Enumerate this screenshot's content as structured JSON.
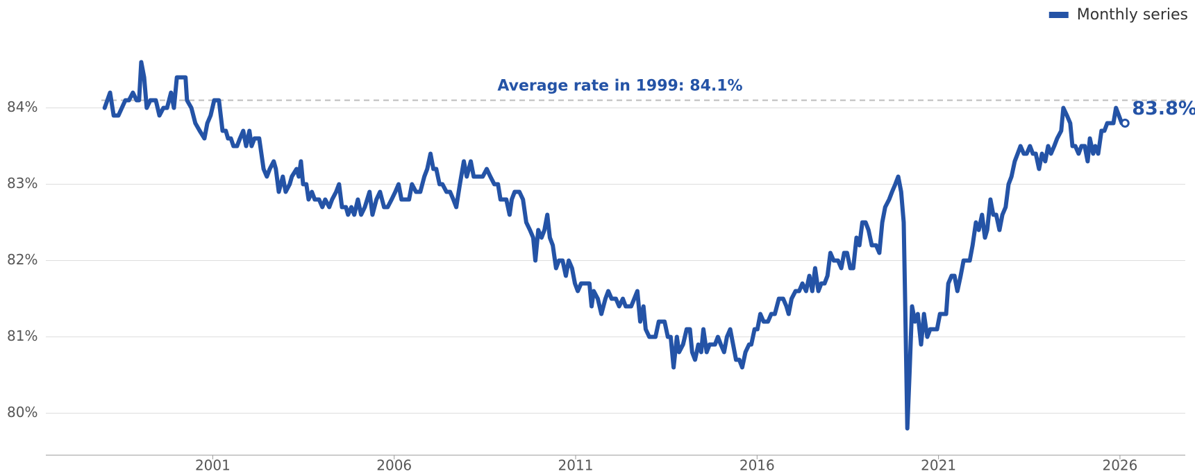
{
  "chart_data": {
    "type": "line",
    "legend": "top-right",
    "grid": true,
    "xlim": [
      1996.4,
      2027.8
    ],
    "xticks": [
      2001,
      2006,
      2011,
      2016,
      2021,
      2026
    ],
    "ylim": [
      79.45,
      85.05
    ],
    "yticks": [
      {
        "value": 80,
        "label": "80%"
      },
      {
        "value": 81,
        "label": "81%"
      },
      {
        "value": 82,
        "label": "82%"
      },
      {
        "value": 83,
        "label": "83%"
      },
      {
        "value": 84,
        "label": "84%"
      }
    ],
    "reference_line": {
      "value": 84.1,
      "label": "Average rate in 1999: 84.1%",
      "color": "#bbbbbb"
    },
    "end_label": "83.8%",
    "x": [
      1998.02,
      1998.17,
      1998.27,
      1998.4,
      1998.59,
      1998.69,
      1998.8,
      1998.9,
      1998.97,
      1999.03,
      1999.11,
      1999.18,
      1999.28,
      1999.43,
      1999.53,
      1999.64,
      1999.74,
      1999.85,
      1999.93,
      2000.01,
      2000.16,
      2000.25,
      2000.29,
      2000.41,
      2000.52,
      2000.64,
      2000.77,
      2000.85,
      2000.94,
      2001.04,
      2001.17,
      2001.27,
      2001.36,
      2001.42,
      2001.5,
      2001.57,
      2001.67,
      2001.75,
      2001.84,
      2001.92,
      2002.01,
      2002.07,
      2002.15,
      2002.28,
      2002.4,
      2002.49,
      2002.57,
      2002.68,
      2002.74,
      2002.82,
      2002.93,
      2003.01,
      2003.12,
      2003.18,
      2003.31,
      2003.37,
      2003.43,
      2003.49,
      2003.58,
      2003.64,
      2003.73,
      2003.81,
      2003.93,
      2004.02,
      2004.1,
      2004.21,
      2004.29,
      2004.4,
      2004.48,
      2004.56,
      2004.67,
      2004.73,
      2004.82,
      2004.9,
      2005.0,
      2005.09,
      2005.19,
      2005.32,
      2005.4,
      2005.51,
      2005.61,
      2005.72,
      2005.82,
      2005.93,
      2006.03,
      2006.12,
      2006.2,
      2006.3,
      2006.41,
      2006.49,
      2006.6,
      2006.72,
      2006.83,
      2006.91,
      2007.0,
      2007.08,
      2007.16,
      2007.25,
      2007.33,
      2007.44,
      2007.54,
      2007.63,
      2007.71,
      2007.81,
      2007.92,
      2008.0,
      2008.11,
      2008.19,
      2008.34,
      2008.44,
      2008.55,
      2008.65,
      2008.76,
      2008.86,
      2008.93,
      2009.09,
      2009.18,
      2009.24,
      2009.32,
      2009.45,
      2009.55,
      2009.64,
      2009.74,
      2009.83,
      2009.89,
      2009.97,
      2010.06,
      2010.14,
      2010.22,
      2010.29,
      2010.37,
      2010.46,
      2010.54,
      2010.64,
      2010.73,
      2010.81,
      2010.9,
      2010.98,
      2011.06,
      2011.15,
      2011.38,
      2011.44,
      2011.5,
      2011.61,
      2011.71,
      2011.82,
      2011.9,
      2011.99,
      2012.11,
      2012.2,
      2012.3,
      2012.38,
      2012.53,
      2012.7,
      2012.78,
      2012.87,
      2012.93,
      2013.03,
      2013.2,
      2013.29,
      2013.45,
      2013.54,
      2013.62,
      2013.7,
      2013.79,
      2013.85,
      2013.96,
      2014.06,
      2014.15,
      2014.21,
      2014.29,
      2014.38,
      2014.46,
      2014.52,
      2014.61,
      2014.69,
      2014.84,
      2014.92,
      2015.0,
      2015.09,
      2015.17,
      2015.26,
      2015.34,
      2015.42,
      2015.51,
      2015.59,
      2015.68,
      2015.78,
      2015.84,
      2015.93,
      2016.01,
      2016.09,
      2016.18,
      2016.3,
      2016.39,
      2016.49,
      2016.6,
      2016.72,
      2016.81,
      2016.87,
      2016.95,
      2017.06,
      2017.16,
      2017.25,
      2017.35,
      2017.44,
      2017.52,
      2017.6,
      2017.69,
      2017.77,
      2017.86,
      2017.94,
      2018.02,
      2018.11,
      2018.23,
      2018.32,
      2018.4,
      2018.48,
      2018.57,
      2018.65,
      2018.74,
      2018.82,
      2018.9,
      2018.99,
      2019.07,
      2019.16,
      2019.28,
      2019.37,
      2019.45,
      2019.53,
      2019.64,
      2019.72,
      2019.81,
      2019.89,
      2019.97,
      2020.04,
      2020.08,
      2020.14,
      2020.2,
      2020.27,
      2020.35,
      2020.43,
      2020.52,
      2020.6,
      2020.69,
      2020.77,
      2020.87,
      2020.96,
      2021.04,
      2021.21,
      2021.27,
      2021.36,
      2021.44,
      2021.52,
      2021.61,
      2021.69,
      2021.86,
      2021.94,
      2022.03,
      2022.11,
      2022.2,
      2022.28,
      2022.34,
      2022.43,
      2022.51,
      2022.59,
      2022.68,
      2022.76,
      2022.85,
      2022.93,
      2023.01,
      2023.1,
      2023.18,
      2023.26,
      2023.35,
      2023.43,
      2023.52,
      2023.6,
      2023.68,
      2023.77,
      2023.85,
      2023.94,
      2024.02,
      2024.1,
      2024.19,
      2024.27,
      2024.38,
      2024.44,
      2024.54,
      2024.63,
      2024.69,
      2024.77,
      2024.86,
      2024.94,
      2025.03,
      2025.11,
      2025.17,
      2025.26,
      2025.32,
      2025.4,
      2025.49,
      2025.57,
      2025.65,
      2025.74,
      2025.82,
      2025.89,
      2025.97,
      2026.05,
      2026.14
    ],
    "series": [
      {
        "name": "Monthly series",
        "color": "#2453a6",
        "values": [
          84.0,
          84.2,
          83.9,
          83.9,
          84.1,
          84.1,
          84.2,
          84.1,
          84.1,
          84.6,
          84.4,
          84.0,
          84.1,
          84.1,
          83.9,
          84.0,
          84.0,
          84.2,
          84.0,
          84.4,
          84.4,
          84.4,
          84.1,
          84.0,
          83.8,
          83.7,
          83.6,
          83.8,
          83.9,
          84.1,
          84.1,
          83.7,
          83.7,
          83.6,
          83.6,
          83.5,
          83.5,
          83.6,
          83.7,
          83.5,
          83.7,
          83.5,
          83.6,
          83.6,
          83.2,
          83.1,
          83.2,
          83.3,
          83.2,
          82.9,
          83.1,
          82.9,
          83.0,
          83.1,
          83.2,
          83.1,
          83.3,
          83.0,
          83.0,
          82.8,
          82.9,
          82.8,
          82.8,
          82.7,
          82.8,
          82.7,
          82.8,
          82.9,
          83.0,
          82.7,
          82.7,
          82.6,
          82.7,
          82.6,
          82.8,
          82.6,
          82.7,
          82.9,
          82.6,
          82.8,
          82.9,
          82.7,
          82.7,
          82.8,
          82.9,
          83.0,
          82.8,
          82.8,
          82.8,
          83.0,
          82.9,
          82.9,
          83.1,
          83.2,
          83.4,
          83.2,
          83.2,
          83.0,
          83.0,
          82.9,
          82.9,
          82.8,
          82.7,
          83.0,
          83.3,
          83.1,
          83.3,
          83.1,
          83.1,
          83.1,
          83.2,
          83.1,
          83.0,
          83.0,
          82.8,
          82.8,
          82.6,
          82.8,
          82.9,
          82.9,
          82.8,
          82.5,
          82.4,
          82.3,
          82.0,
          82.4,
          82.3,
          82.4,
          82.6,
          82.3,
          82.2,
          81.9,
          82.0,
          82.0,
          81.8,
          82.0,
          81.9,
          81.7,
          81.6,
          81.7,
          81.7,
          81.4,
          81.6,
          81.5,
          81.3,
          81.5,
          81.6,
          81.5,
          81.5,
          81.4,
          81.5,
          81.4,
          81.4,
          81.6,
          81.2,
          81.4,
          81.1,
          81.0,
          81.0,
          81.2,
          81.2,
          81.0,
          81.0,
          80.6,
          81.0,
          80.8,
          80.9,
          81.1,
          81.1,
          80.8,
          80.7,
          80.9,
          80.8,
          81.1,
          80.8,
          80.9,
          80.9,
          81.0,
          80.9,
          80.8,
          81.0,
          81.1,
          80.9,
          80.7,
          80.7,
          80.6,
          80.8,
          80.9,
          80.9,
          81.1,
          81.1,
          81.3,
          81.2,
          81.2,
          81.3,
          81.3,
          81.5,
          81.5,
          81.4,
          81.3,
          81.5,
          81.6,
          81.6,
          81.7,
          81.6,
          81.8,
          81.6,
          81.9,
          81.6,
          81.7,
          81.7,
          81.8,
          82.1,
          82.0,
          82.0,
          81.9,
          82.1,
          82.1,
          81.9,
          81.9,
          82.3,
          82.2,
          82.5,
          82.5,
          82.4,
          82.2,
          82.2,
          82.1,
          82.5,
          82.7,
          82.8,
          82.9,
          83.0,
          83.1,
          82.9,
          82.5,
          81.5,
          79.8,
          80.5,
          81.4,
          81.2,
          81.3,
          80.9,
          81.3,
          81.0,
          81.1,
          81.1,
          81.1,
          81.3,
          81.3,
          81.7,
          81.8,
          81.8,
          81.6,
          81.8,
          82.0,
          82.0,
          82.2,
          82.5,
          82.4,
          82.6,
          82.3,
          82.4,
          82.8,
          82.6,
          82.6,
          82.4,
          82.6,
          82.7,
          83.0,
          83.1,
          83.3,
          83.4,
          83.5,
          83.4,
          83.4,
          83.5,
          83.4,
          83.4,
          83.2,
          83.4,
          83.3,
          83.5,
          83.4,
          83.5,
          83.6,
          83.7,
          84.0,
          83.9,
          83.8,
          83.5,
          83.5,
          83.4,
          83.5,
          83.5,
          83.3,
          83.6,
          83.4,
          83.5,
          83.4,
          83.7,
          83.7,
          83.8,
          83.8,
          83.8,
          84.0,
          83.9,
          83.8,
          83.8
        ]
      }
    ]
  }
}
